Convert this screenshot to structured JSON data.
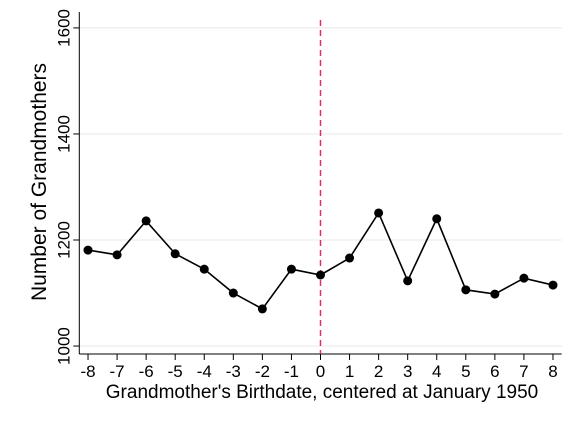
{
  "chart_data": {
    "type": "line",
    "x_label": "Grandmother's Birthdate, centered at January 1950",
    "y_label": "Number of Grandmothers",
    "x": [
      -8,
      -7,
      -6,
      -5,
      -4,
      -3,
      -2,
      -1,
      0,
      1,
      2,
      3,
      4,
      5,
      6,
      7,
      8
    ],
    "series": [
      {
        "name": "Grandmothers",
        "color": "#000000",
        "values": [
          1181,
          1172,
          1236,
          1174,
          1145,
          1100,
          1070,
          1145,
          1134,
          1166,
          1251,
          1123,
          1240,
          1106,
          1098,
          1128,
          1115
        ]
      }
    ],
    "xlim": [
      -8.3,
      8.3
    ],
    "xticks": [
      -8,
      -7,
      -6,
      -5,
      -4,
      -3,
      -2,
      -1,
      0,
      1,
      2,
      3,
      4,
      5,
      6,
      7,
      8
    ],
    "ylim": [
      985,
      1630
    ],
    "yticks": [
      1000,
      1200,
      1400,
      1600
    ],
    "grid": true,
    "vline": {
      "x": 0,
      "color": "#d6336c"
    }
  }
}
